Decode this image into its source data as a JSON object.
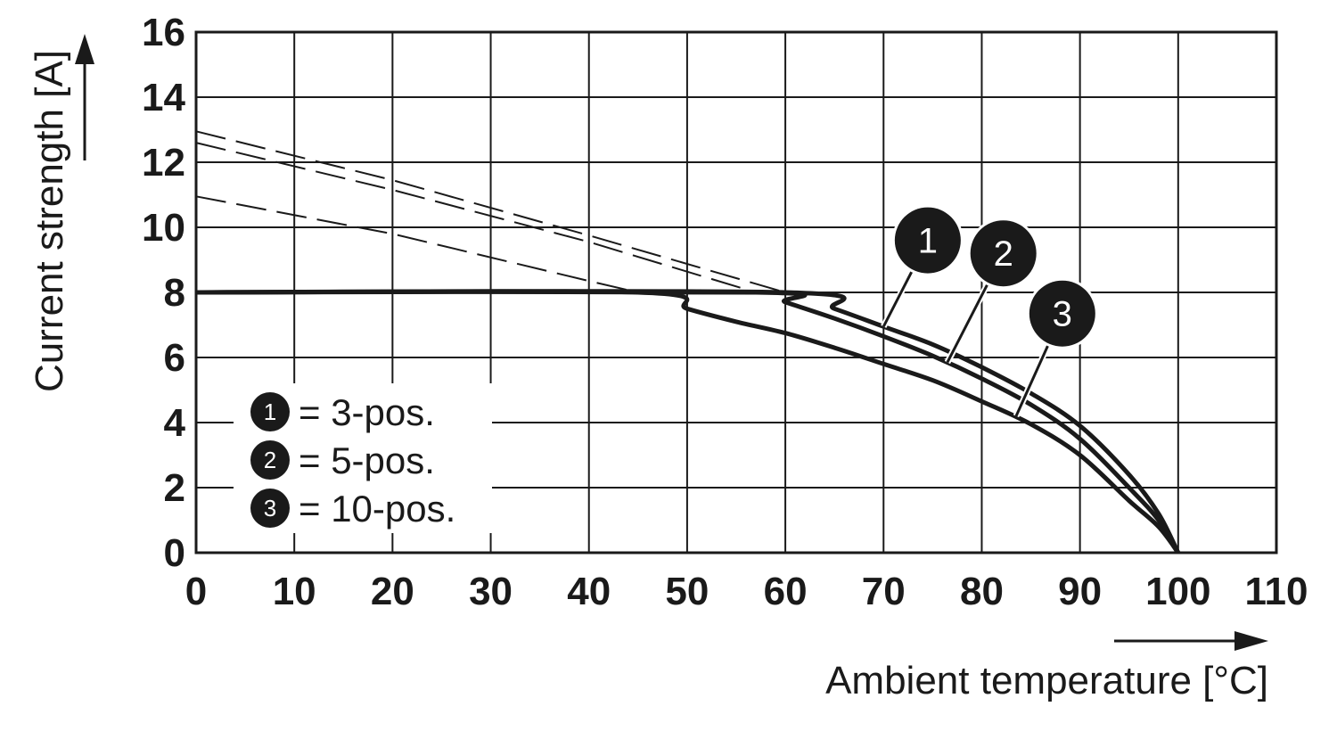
{
  "chart_data": {
    "type": "line",
    "xlabel": "Ambient temperature [°C]",
    "ylabel": "Current strength [A]",
    "xlim": [
      0,
      110
    ],
    "ylim": [
      0,
      16
    ],
    "x_ticks": [
      0,
      10,
      20,
      30,
      40,
      50,
      60,
      70,
      80,
      90,
      100,
      110
    ],
    "y_ticks": [
      0,
      2,
      4,
      6,
      8,
      10,
      12,
      14,
      16
    ],
    "grid": true,
    "legend_position": "bottom-left",
    "legend": [
      {
        "id": "1",
        "label": "= 3-pos."
      },
      {
        "id": "2",
        "label": "= 5-pos."
      },
      {
        "id": "3",
        "label": "= 10-pos."
      }
    ],
    "series": [
      {
        "id": "1",
        "style": "solid",
        "points": [
          [
            0,
            8
          ],
          [
            60,
            8
          ],
          [
            65,
            7.5
          ],
          [
            70,
            6.95
          ],
          [
            75,
            6.4
          ],
          [
            80,
            5.7
          ],
          [
            85,
            4.9
          ],
          [
            90,
            3.9
          ],
          [
            95,
            2.4
          ],
          [
            98,
            1.2
          ],
          [
            100,
            0
          ]
        ]
      },
      {
        "id": "2",
        "style": "solid",
        "points": [
          [
            0,
            8
          ],
          [
            57,
            8
          ],
          [
            60,
            7.7
          ],
          [
            65,
            7.2
          ],
          [
            70,
            6.65
          ],
          [
            75,
            6.05
          ],
          [
            80,
            5.35
          ],
          [
            85,
            4.55
          ],
          [
            90,
            3.5
          ],
          [
            95,
            2.0
          ],
          [
            98,
            1.0
          ],
          [
            100,
            0
          ]
        ]
      },
      {
        "id": "3",
        "style": "solid",
        "points": [
          [
            0,
            8
          ],
          [
            45,
            8
          ],
          [
            50,
            7.5
          ],
          [
            55,
            7.1
          ],
          [
            60,
            6.75
          ],
          [
            65,
            6.3
          ],
          [
            70,
            5.8
          ],
          [
            75,
            5.3
          ],
          [
            80,
            4.65
          ],
          [
            85,
            3.95
          ],
          [
            90,
            3.0
          ],
          [
            95,
            1.6
          ],
          [
            98,
            0.8
          ],
          [
            100,
            0
          ]
        ]
      },
      {
        "id": "1-extrapolated",
        "style": "dashed",
        "points": [
          [
            0,
            12.95
          ],
          [
            20,
            11.45
          ],
          [
            40,
            9.75
          ],
          [
            60,
            8
          ]
        ]
      },
      {
        "id": "2-extrapolated",
        "style": "dashed",
        "points": [
          [
            0,
            12.6
          ],
          [
            20,
            11.15
          ],
          [
            40,
            9.55
          ],
          [
            57,
            8
          ]
        ]
      },
      {
        "id": "3-extrapolated",
        "style": "dashed",
        "points": [
          [
            0,
            10.95
          ],
          [
            20,
            9.8
          ],
          [
            40,
            8.35
          ],
          [
            45,
            8
          ]
        ]
      }
    ],
    "curve_markers": [
      {
        "id": "1",
        "label": "1",
        "target": [
          70,
          6.95
        ],
        "at": [
          74.5,
          9.6
        ]
      },
      {
        "id": "2",
        "label": "2",
        "target": [
          76.5,
          5.85
        ],
        "at": [
          82.2,
          9.2
        ]
      },
      {
        "id": "3",
        "label": "3",
        "target": [
          83.5,
          4.2
        ],
        "at": [
          88.2,
          7.35
        ]
      }
    ],
    "colors": {
      "line": "#1a1a1a",
      "grid": "#1a1a1a",
      "background": "#ffffff"
    }
  }
}
